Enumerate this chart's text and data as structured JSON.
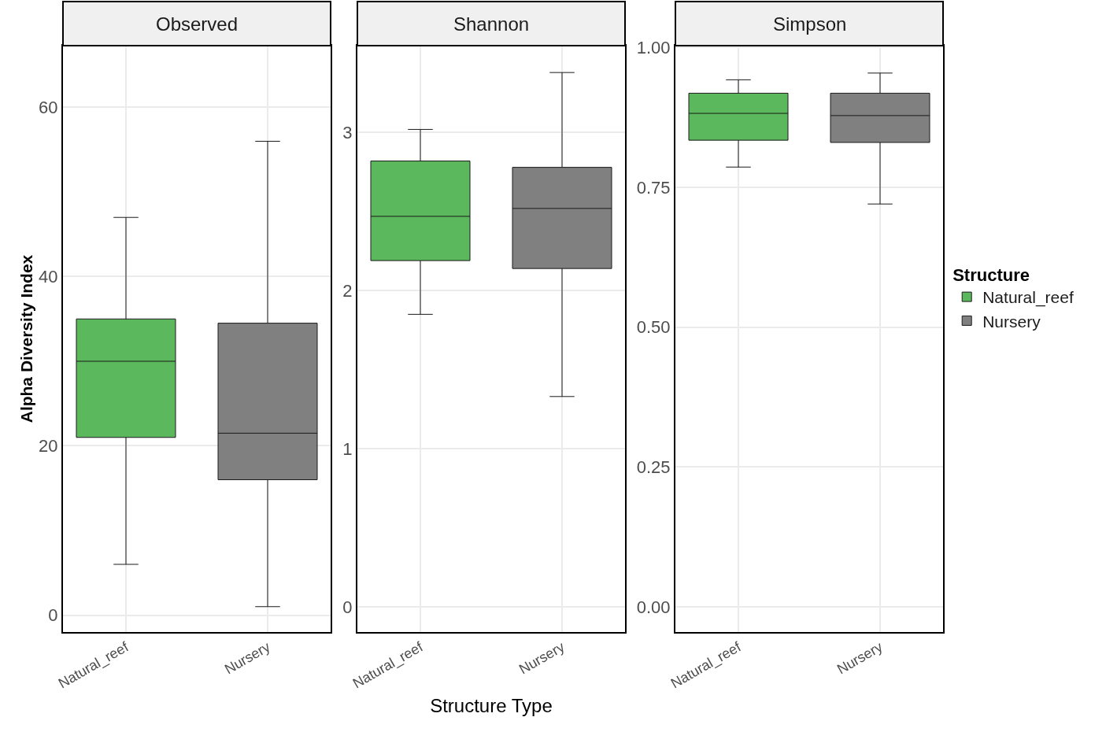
{
  "chart_data": [
    {
      "type": "box",
      "title": "Observed",
      "ylabel": "Alpha Diversity Index",
      "categories": [
        "Natural_reef",
        "Nursery"
      ],
      "ylim": [
        -2,
        67.3
      ],
      "yticks": [
        0,
        20,
        40,
        60
      ],
      "grid": true,
      "legend": false,
      "series": [
        {
          "color": "#5cb85c",
          "boxes": [
            {
              "low": 6,
              "q1": 21,
              "median": 30,
              "q3": 35,
              "high": 47
            },
            null
          ]
        },
        {
          "color": "#808080",
          "boxes": [
            null,
            {
              "low": 1,
              "q1": 16,
              "median": 21.5,
              "q3": 34.5,
              "high": 56
            }
          ]
        }
      ]
    },
    {
      "type": "box",
      "title": "Shannon",
      "xlabel": "Structure Type",
      "categories": [
        "Natural_reef",
        "Nursery"
      ],
      "ylim": [
        -0.16,
        3.55
      ],
      "yticks": [
        0,
        1,
        2,
        3
      ],
      "grid": true,
      "legend": false,
      "series": [
        {
          "color": "#5cb85c",
          "boxes": [
            {
              "low": 1.85,
              "q1": 2.19,
              "median": 2.47,
              "q3": 2.82,
              "high": 3.02
            },
            null
          ]
        },
        {
          "color": "#808080",
          "boxes": [
            null,
            {
              "low": 1.33,
              "q1": 2.14,
              "median": 2.52,
              "q3": 2.78,
              "high": 3.38
            }
          ]
        }
      ]
    },
    {
      "type": "box",
      "title": "Simpson",
      "categories": [
        "Natural_reef",
        "Nursery"
      ],
      "ylim": [
        -0.045,
        1.003
      ],
      "yticks": [
        {
          "value": 0,
          "label": "0.00"
        },
        {
          "value": 0.25,
          "label": "0.25"
        },
        {
          "value": 0.5,
          "label": "0.50"
        },
        {
          "value": 0.75,
          "label": "0.75"
        },
        {
          "value": 1,
          "label": "1.00"
        }
      ],
      "grid": true,
      "legend": "right",
      "legend_title": "Structure",
      "series": [
        {
          "name": "Natural_reef",
          "color": "#5cb85c",
          "boxes": [
            {
              "low": 0.786,
              "q1": 0.834,
              "median": 0.882,
              "q3": 0.918,
              "high": 0.942
            },
            null
          ]
        },
        {
          "name": "Nursery",
          "color": "#808080",
          "boxes": [
            null,
            {
              "low": 0.72,
              "q1": 0.83,
              "median": 0.878,
              "q3": 0.918,
              "high": 0.954
            }
          ]
        }
      ]
    }
  ]
}
